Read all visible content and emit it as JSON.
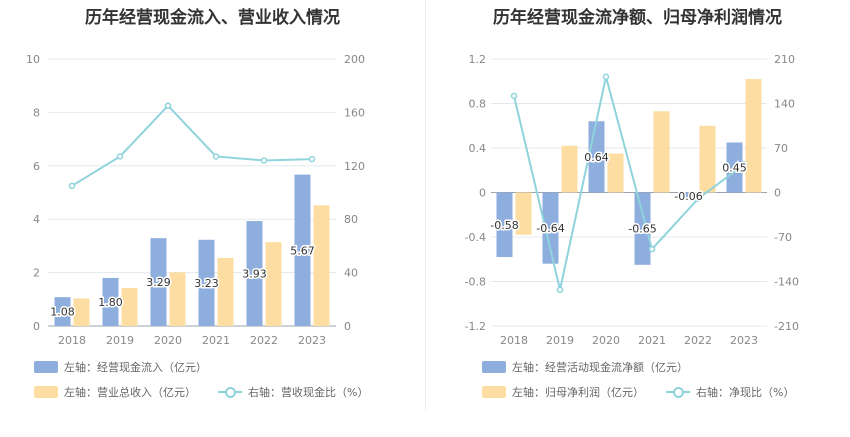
{
  "chart_data": [
    {
      "type": "bar",
      "title": "历年经营现金流入、营业收入情况",
      "categories": [
        "2018",
        "2019",
        "2020",
        "2021",
        "2022",
        "2023"
      ],
      "left_axis": {
        "min": 0,
        "max": 10,
        "step": 2,
        "ticks": [
          "0",
          "2",
          "4",
          "6",
          "8",
          "10"
        ]
      },
      "right_axis": {
        "min": 0,
        "max": 200,
        "step": 40,
        "ticks": [
          "0",
          "40",
          "80",
          "120",
          "160",
          "200"
        ]
      },
      "series": [
        {
          "name": "左轴：经营现金流入（亿元）",
          "type": "bar",
          "axis": "left",
          "color": "#8eaedd",
          "values": [
            1.08,
            1.8,
            3.29,
            3.23,
            3.93,
            5.67
          ],
          "labels": [
            "1.08",
            "1.80",
            "3.29",
            "3.23",
            "3.93",
            "5.67"
          ]
        },
        {
          "name": "左轴：营业总收入（亿元）",
          "type": "bar",
          "axis": "left",
          "color": "#fddda2",
          "values": [
            1.03,
            1.42,
            2.01,
            2.55,
            3.14,
            4.52
          ]
        },
        {
          "name": "右轴：营收现金比（%）",
          "type": "line",
          "axis": "right",
          "color": "#8fd3dc",
          "values": [
            105,
            127,
            165,
            127,
            124,
            125
          ]
        }
      ],
      "grid": true,
      "legend_position": "bottom-left"
    },
    {
      "type": "bar",
      "title": "历年经营现金流净额、归母净利润情况",
      "categories": [
        "2018",
        "2019",
        "2020",
        "2021",
        "2022",
        "2023"
      ],
      "left_axis": {
        "min": -1.2,
        "max": 1.2,
        "step": 0.4,
        "ticks": [
          "-1.2",
          "-0.8",
          "-0.4",
          "0",
          "0.4",
          "0.8",
          "1.2"
        ]
      },
      "right_axis": {
        "min": -210,
        "max": 210,
        "step": 70,
        "ticks": [
          "-210",
          "-140",
          "-70",
          "0",
          "70",
          "140",
          "210"
        ]
      },
      "series": [
        {
          "name": "左轴：经营活动现金流净额（亿元）",
          "type": "bar",
          "axis": "left",
          "color": "#8eaedd",
          "values": [
            -0.58,
            -0.64,
            0.64,
            -0.65,
            -0.06,
            0.45
          ],
          "labels": [
            "-0.58",
            "-0.64",
            "0.64",
            "-0.65",
            "-0.06",
            "0.45"
          ]
        },
        {
          "name": "左轴：归母净利润（亿元）",
          "type": "bar",
          "axis": "left",
          "color": "#fddda2",
          "values": [
            -0.38,
            0.42,
            0.35,
            0.73,
            0.6,
            1.02
          ]
        },
        {
          "name": "右轴：净现比（%）",
          "type": "line",
          "axis": "right",
          "color": "#8fd3dc",
          "values": [
            152,
            -153,
            182,
            -89,
            -10,
            44
          ]
        }
      ],
      "grid": true,
      "legend_position": "bottom-left"
    }
  ]
}
